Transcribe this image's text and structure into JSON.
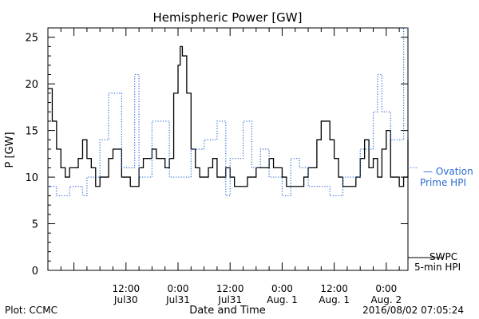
{
  "chart_data": {
    "type": "line",
    "title": "Hemispheric Power [GW]",
    "ylabel": "P [GW]",
    "xlabel": "Date and Time",
    "ylim": [
      0,
      26
    ],
    "xlim": [
      "2016-07-29T18:00",
      "2016-08-02T05:00"
    ],
    "y_ticks": [
      "0",
      "5",
      "10",
      "15",
      "20",
      "25"
    ],
    "x_ticks": [
      {
        "time": "12:00",
        "date": "Jul30",
        "t": "2016-07-30T12:00"
      },
      {
        "time": "0:00",
        "date": "Jul31",
        "t": "2016-07-31T00:00"
      },
      {
        "time": "12:00",
        "date": "Jul31",
        "t": "2016-07-31T12:00"
      },
      {
        "time": "0:00",
        "date": "Aug. 1",
        "t": "2016-08-01T00:00"
      },
      {
        "time": "12:00",
        "date": "Aug. 1",
        "t": "2016-08-01T12:00"
      },
      {
        "time": "0:00",
        "date": "Aug. 2",
        "t": "2016-08-02T00:00"
      }
    ],
    "grid": false,
    "legend_position": "right",
    "series": [
      {
        "name": "SWPC 5-min HPI",
        "legend_lines": [
          "SWPC",
          "5-min HPI"
        ],
        "color": "#000000",
        "style": "solid",
        "points": [
          [
            "2016-07-29T18:00",
            19.5
          ],
          [
            "2016-07-29T19:00",
            16
          ],
          [
            "2016-07-29T20:00",
            13
          ],
          [
            "2016-07-29T21:00",
            11
          ],
          [
            "2016-07-29T22:00",
            10
          ],
          [
            "2016-07-29T23:00",
            11
          ],
          [
            "2016-07-30T01:00",
            12
          ],
          [
            "2016-07-30T02:00",
            14
          ],
          [
            "2016-07-30T03:00",
            12
          ],
          [
            "2016-07-30T04:00",
            11
          ],
          [
            "2016-07-30T05:00",
            9
          ],
          [
            "2016-07-30T06:00",
            10
          ],
          [
            "2016-07-30T08:00",
            12
          ],
          [
            "2016-07-30T09:00",
            13
          ],
          [
            "2016-07-30T11:00",
            10
          ],
          [
            "2016-07-30T12:00",
            10
          ],
          [
            "2016-07-30T13:00",
            9
          ],
          [
            "2016-07-30T15:00",
            11
          ],
          [
            "2016-07-30T16:00",
            12
          ],
          [
            "2016-07-30T18:00",
            13
          ],
          [
            "2016-07-30T19:00",
            12
          ],
          [
            "2016-07-30T21:00",
            11
          ],
          [
            "2016-07-30T22:00",
            12
          ],
          [
            "2016-07-30T23:00",
            19
          ],
          [
            "2016-07-31T00:00",
            22
          ],
          [
            "2016-07-31T00:30",
            24
          ],
          [
            "2016-07-31T01:00",
            23
          ],
          [
            "2016-07-31T02:00",
            19
          ],
          [
            "2016-07-31T03:00",
            13
          ],
          [
            "2016-07-31T04:00",
            11
          ],
          [
            "2016-07-31T05:00",
            10
          ],
          [
            "2016-07-31T07:00",
            11
          ],
          [
            "2016-07-31T08:00",
            12
          ],
          [
            "2016-07-31T09:00",
            10
          ],
          [
            "2016-07-31T10:00",
            10
          ],
          [
            "2016-07-31T11:00",
            11
          ],
          [
            "2016-07-31T12:00",
            10
          ],
          [
            "2016-07-31T13:00",
            9
          ],
          [
            "2016-07-31T15:00",
            9
          ],
          [
            "2016-07-31T16:00",
            10
          ],
          [
            "2016-07-31T18:00",
            11
          ],
          [
            "2016-07-31T20:00",
            11
          ],
          [
            "2016-07-31T21:00",
            12
          ],
          [
            "2016-07-31T22:00",
            11
          ],
          [
            "2016-08-01T00:00",
            10
          ],
          [
            "2016-08-01T01:00",
            9
          ],
          [
            "2016-08-01T02:00",
            9
          ],
          [
            "2016-08-01T04:00",
            9
          ],
          [
            "2016-08-01T05:00",
            10
          ],
          [
            "2016-08-01T06:00",
            11
          ],
          [
            "2016-08-01T08:00",
            14
          ],
          [
            "2016-08-01T09:00",
            16
          ],
          [
            "2016-08-01T10:00",
            16
          ],
          [
            "2016-08-01T11:00",
            14
          ],
          [
            "2016-08-01T12:00",
            12
          ],
          [
            "2016-08-01T13:00",
            10
          ],
          [
            "2016-08-01T14:00",
            9
          ],
          [
            "2016-08-01T16:00",
            9
          ],
          [
            "2016-08-01T17:00",
            10
          ],
          [
            "2016-08-01T18:00",
            12
          ],
          [
            "2016-08-01T19:00",
            14
          ],
          [
            "2016-08-01T20:00",
            11
          ],
          [
            "2016-08-01T21:00",
            12
          ],
          [
            "2016-08-01T22:00",
            10
          ],
          [
            "2016-08-01T23:00",
            13
          ],
          [
            "2016-08-02T00:00",
            15
          ],
          [
            "2016-08-02T01:00",
            10
          ],
          [
            "2016-08-02T02:00",
            10
          ],
          [
            "2016-08-02T03:00",
            9
          ],
          [
            "2016-08-02T04:00",
            10
          ],
          [
            "2016-08-02T05:00",
            14
          ]
        ]
      },
      {
        "name": "Ovation Prime HPI",
        "legend_lines": [
          "— Ovation",
          "Prime HPI"
        ],
        "color": "#2a6bd1",
        "style": "dotted",
        "points": [
          [
            "2016-07-29T18:00",
            9
          ],
          [
            "2016-07-29T20:00",
            8
          ],
          [
            "2016-07-29T23:00",
            9
          ],
          [
            "2016-07-30T02:00",
            8
          ],
          [
            "2016-07-30T03:00",
            10
          ],
          [
            "2016-07-30T06:00",
            14
          ],
          [
            "2016-07-30T08:00",
            19
          ],
          [
            "2016-07-30T11:00",
            11
          ],
          [
            "2016-07-30T14:00",
            21
          ],
          [
            "2016-07-30T15:00",
            10
          ],
          [
            "2016-07-30T18:00",
            16
          ],
          [
            "2016-07-30T22:00",
            10
          ],
          [
            "2016-07-31T03:00",
            13
          ],
          [
            "2016-07-31T06:00",
            14
          ],
          [
            "2016-07-31T09:00",
            16
          ],
          [
            "2016-07-31T11:00",
            8
          ],
          [
            "2016-07-31T12:00",
            12
          ],
          [
            "2016-07-31T15:00",
            16
          ],
          [
            "2016-07-31T17:00",
            11
          ],
          [
            "2016-07-31T19:00",
            13
          ],
          [
            "2016-07-31T21:00",
            10
          ],
          [
            "2016-08-01T00:00",
            8
          ],
          [
            "2016-08-01T02:00",
            12
          ],
          [
            "2016-08-01T04:00",
            11
          ],
          [
            "2016-08-01T06:00",
            9
          ],
          [
            "2016-08-01T09:00",
            9
          ],
          [
            "2016-08-01T11:00",
            8
          ],
          [
            "2016-08-01T14:00",
            10
          ],
          [
            "2016-08-01T18:00",
            13
          ],
          [
            "2016-08-01T21:00",
            17
          ],
          [
            "2016-08-01T22:00",
            21
          ],
          [
            "2016-08-01T23:00",
            17
          ],
          [
            "2016-08-02T01:00",
            14
          ],
          [
            "2016-08-02T04:00",
            26
          ],
          [
            "2016-08-02T05:00",
            26
          ]
        ]
      }
    ]
  },
  "footer": {
    "left": "Plot: CCMC",
    "right": "2016/08/02 07:05:24"
  }
}
